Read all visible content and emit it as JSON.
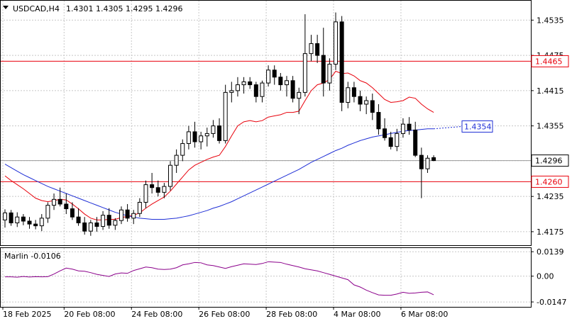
{
  "header": {
    "symbol": "USDCAD,H4",
    "ohlc": "1.4301 1.4305 1.4295 1.4296"
  },
  "colors": {
    "background": "#ffffff",
    "grid": "#c8c8c8",
    "candle": "#000000",
    "ma_fast": "#e8000b",
    "ma_slow": "#1f2fd6",
    "oscillator": "#8b008b",
    "level_line": "#e8000b",
    "price_tag_bg": "#ffffff",
    "dashed_projection": "#1f2fd6"
  },
  "chart_data": [
    {
      "type": "candlestick",
      "name": "price-panel",
      "title": "USDCAD,H4",
      "y_ticks": [
        "1.4535",
        "1.4475",
        "1.4415",
        "1.4355",
        "1.4296",
        "1.4235",
        "1.4175"
      ],
      "ylim": [
        1.4152,
        1.4568
      ],
      "x_ticks": [
        "18 Feb 2025",
        "20 Feb 08:00",
        "24 Feb 08:00",
        "26 Feb 08:00",
        "28 Feb 08:00",
        "4 Mar 08:00",
        "6 Mar 08:00"
      ],
      "grid": true,
      "horizontal_levels": [
        {
          "value": 1.4465,
          "label": "1.4465"
        },
        {
          "value": 1.426,
          "label": "1.4260"
        }
      ],
      "current_price": {
        "value": 1.4296,
        "label": "1.4296"
      },
      "projection_label": {
        "value": 1.4354,
        "label": "1.4354"
      },
      "candles": [
        [
          1.4195,
          1.4213,
          1.4182,
          1.4207
        ],
        [
          1.4207,
          1.4212,
          1.4185,
          1.419
        ],
        [
          1.419,
          1.4208,
          1.4183,
          1.42
        ],
        [
          1.42,
          1.4205,
          1.4186,
          1.4193
        ],
        [
          1.4193,
          1.42,
          1.418,
          1.4188
        ],
        [
          1.4188,
          1.4195,
          1.4179,
          1.4185
        ],
        [
          1.4185,
          1.4205,
          1.4176,
          1.4198
        ],
        [
          1.4198,
          1.4225,
          1.419,
          1.422
        ],
        [
          1.422,
          1.424,
          1.4212,
          1.423
        ],
        [
          1.423,
          1.425,
          1.4218,
          1.4222
        ],
        [
          1.4222,
          1.424,
          1.4205,
          1.4214
        ],
        [
          1.4214,
          1.4225,
          1.4195,
          1.42
        ],
        [
          1.42,
          1.4215,
          1.4185,
          1.419
        ],
        [
          1.419,
          1.42,
          1.417,
          1.4176
        ],
        [
          1.4176,
          1.4195,
          1.4168,
          1.419
        ],
        [
          1.419,
          1.42,
          1.4175,
          1.4184
        ],
        [
          1.4184,
          1.421,
          1.4178,
          1.4203
        ],
        [
          1.4203,
          1.4215,
          1.418,
          1.4186
        ],
        [
          1.4186,
          1.4198,
          1.4178,
          1.4194
        ],
        [
          1.4194,
          1.4218,
          1.4188,
          1.4212
        ],
        [
          1.4212,
          1.4222,
          1.4192,
          1.4198
        ],
        [
          1.4198,
          1.4212,
          1.4188,
          1.4206
        ],
        [
          1.4206,
          1.4232,
          1.42,
          1.4225
        ],
        [
          1.4225,
          1.4262,
          1.4215,
          1.4255
        ],
        [
          1.4255,
          1.4275,
          1.424,
          1.425
        ],
        [
          1.425,
          1.4262,
          1.4235,
          1.4242
        ],
        [
          1.4242,
          1.4258,
          1.4232,
          1.4252
        ],
        [
          1.4252,
          1.4295,
          1.4245,
          1.4288
        ],
        [
          1.4288,
          1.4315,
          1.4275,
          1.4305
        ],
        [
          1.4305,
          1.4332,
          1.4295,
          1.4325
        ],
        [
          1.4325,
          1.4355,
          1.4315,
          1.4345
        ],
        [
          1.4345,
          1.4362,
          1.4318,
          1.4328
        ],
        [
          1.4328,
          1.4345,
          1.4315,
          1.4338
        ],
        [
          1.4338,
          1.4352,
          1.432,
          1.4342
        ],
        [
          1.4342,
          1.4365,
          1.4335,
          1.4355
        ],
        [
          1.4355,
          1.4368,
          1.4325,
          1.433
        ],
        [
          1.433,
          1.4425,
          1.4325,
          1.4412
        ],
        [
          1.4412,
          1.443,
          1.4395,
          1.4415
        ],
        [
          1.4415,
          1.4438,
          1.4405,
          1.4425
        ],
        [
          1.4425,
          1.4438,
          1.441,
          1.443
        ],
        [
          1.443,
          1.4438,
          1.4418,
          1.4425
        ],
        [
          1.4425,
          1.443,
          1.4395,
          1.4405
        ],
        [
          1.4405,
          1.4432,
          1.4395,
          1.4428
        ],
        [
          1.4428,
          1.4458,
          1.4422,
          1.445
        ],
        [
          1.445,
          1.4458,
          1.4425,
          1.4438
        ],
        [
          1.4438,
          1.4445,
          1.4415,
          1.4425
        ],
        [
          1.4425,
          1.444,
          1.4405,
          1.4432
        ],
        [
          1.4432,
          1.444,
          1.4395,
          1.4402
        ],
        [
          1.4402,
          1.442,
          1.4375,
          1.4412
        ],
        [
          1.4412,
          1.4545,
          1.4405,
          1.4478
        ],
        [
          1.4478,
          1.451,
          1.4465,
          1.4495
        ],
        [
          1.4495,
          1.451,
          1.4462,
          1.4475
        ],
        [
          1.4475,
          1.4522,
          1.4405,
          1.4428
        ],
        [
          1.4428,
          1.447,
          1.4415,
          1.446
        ],
        [
          1.446,
          1.4548,
          1.445,
          1.4532
        ],
        [
          1.4532,
          1.4542,
          1.438,
          1.4395
        ],
        [
          1.4395,
          1.443,
          1.4385,
          1.442
        ],
        [
          1.442,
          1.443,
          1.4395,
          1.4405
        ],
        [
          1.4405,
          1.4415,
          1.438,
          1.4392
        ],
        [
          1.4392,
          1.4405,
          1.4375,
          1.4398
        ],
        [
          1.4398,
          1.441,
          1.4365,
          1.4378
        ],
        [
          1.4378,
          1.4392,
          1.434,
          1.435
        ],
        [
          1.435,
          1.4368,
          1.433,
          1.4335
        ],
        [
          1.4335,
          1.4345,
          1.4315,
          1.432
        ],
        [
          1.432,
          1.435,
          1.4312,
          1.4342
        ],
        [
          1.4342,
          1.4368,
          1.4335,
          1.4358
        ],
        [
          1.4358,
          1.437,
          1.434,
          1.4348
        ],
        [
          1.4348,
          1.4362,
          1.4302,
          1.4305
        ],
        [
          1.4305,
          1.4318,
          1.4232,
          1.4282
        ],
        [
          1.4282,
          1.4305,
          1.4275,
          1.43
        ],
        [
          1.4301,
          1.4305,
          1.4295,
          1.4296
        ]
      ],
      "series": [
        {
          "name": "fast-ma",
          "color": "#e8000b",
          "values": [
            1.427,
            1.4262,
            1.4255,
            1.4248,
            1.424,
            1.4232,
            1.4228,
            1.4226,
            1.4228,
            1.423,
            1.4229,
            1.4222,
            1.4214,
            1.4205,
            1.4198,
            1.4195,
            1.4195,
            1.4196,
            1.4196,
            1.4199,
            1.4201,
            1.4203,
            1.4207,
            1.4215,
            1.4222,
            1.4228,
            1.4234,
            1.4244,
            1.4256,
            1.4268,
            1.428,
            1.4288,
            1.4293,
            1.4298,
            1.4302,
            1.4305,
            1.432,
            1.4338,
            1.4355,
            1.4362,
            1.4364,
            1.4362,
            1.4364,
            1.437,
            1.4372,
            1.4374,
            1.4378,
            1.4378,
            1.438,
            1.4398,
            1.4415,
            1.4425,
            1.4428,
            1.4434,
            1.4448,
            1.4444,
            1.4445,
            1.444,
            1.4432,
            1.4428,
            1.442,
            1.441,
            1.44,
            1.4395,
            1.4396,
            1.4398,
            1.4404,
            1.4402,
            1.4392,
            1.4384,
            1.4378
          ]
        },
        {
          "name": "slow-ma",
          "color": "#1f2fd6",
          "values": [
            1.429,
            1.4284,
            1.4278,
            1.4272,
            1.4267,
            1.4262,
            1.4257,
            1.4252,
            1.4248,
            1.4244,
            1.424,
            1.4236,
            1.4232,
            1.4228,
            1.4224,
            1.422,
            1.4216,
            1.4212,
            1.4208,
            1.4205,
            1.4202,
            1.42,
            1.4198,
            1.4197,
            1.4196,
            1.4196,
            1.4196,
            1.4197,
            1.4198,
            1.42,
            1.4202,
            1.4205,
            1.4208,
            1.4211,
            1.4215,
            1.4218,
            1.4222,
            1.4226,
            1.4231,
            1.4236,
            1.4241,
            1.4246,
            1.4251,
            1.4256,
            1.4261,
            1.4266,
            1.4271,
            1.4276,
            1.4281,
            1.4287,
            1.4293,
            1.4298,
            1.4303,
            1.4308,
            1.4313,
            1.4317,
            1.4322,
            1.4326,
            1.433,
            1.4333,
            1.4336,
            1.4338,
            1.434,
            1.4342,
            1.4344,
            1.4346,
            1.4347,
            1.4348,
            1.4349,
            1.435,
            1.435
          ]
        }
      ]
    },
    {
      "type": "line",
      "name": "oscillator-panel",
      "title": "Marlin -0.0106",
      "y_ticks": [
        "0.0139",
        "0.00",
        "-0.0147"
      ],
      "ylim": [
        -0.0175,
        0.016
      ],
      "grid": true,
      "series": [
        {
          "name": "Marlin",
          "color": "#8b008b",
          "values": [
            -0.0004,
            -0.0004,
            -0.0006,
            -0.0002,
            -0.0005,
            -0.0003,
            -0.0004,
            -0.0003,
            0.0012,
            0.003,
            0.0046,
            0.004,
            0.003,
            0.0028,
            0.002,
            0.001,
            0.0004,
            -0.0002,
            0.0012,
            0.0018,
            0.0016,
            0.0032,
            0.0042,
            0.0052,
            0.0048,
            0.004,
            0.0038,
            0.004,
            0.0048,
            0.0064,
            0.007,
            0.0078,
            0.0076,
            0.0064,
            0.006,
            0.0052,
            0.0044,
            0.0054,
            0.0062,
            0.007,
            0.0068,
            0.0066,
            0.0072,
            0.0082,
            0.008,
            0.0078,
            0.0068,
            0.006,
            0.0052,
            0.0042,
            0.0036,
            0.003,
            0.002,
            0.001,
            0.0,
            -0.001,
            -0.002,
            -0.005,
            -0.0062,
            -0.008,
            -0.0094,
            -0.0107,
            -0.0109,
            -0.0109,
            -0.0102,
            -0.0092,
            -0.0098,
            -0.0096,
            -0.0092,
            -0.009,
            -0.0106
          ]
        }
      ]
    }
  ]
}
